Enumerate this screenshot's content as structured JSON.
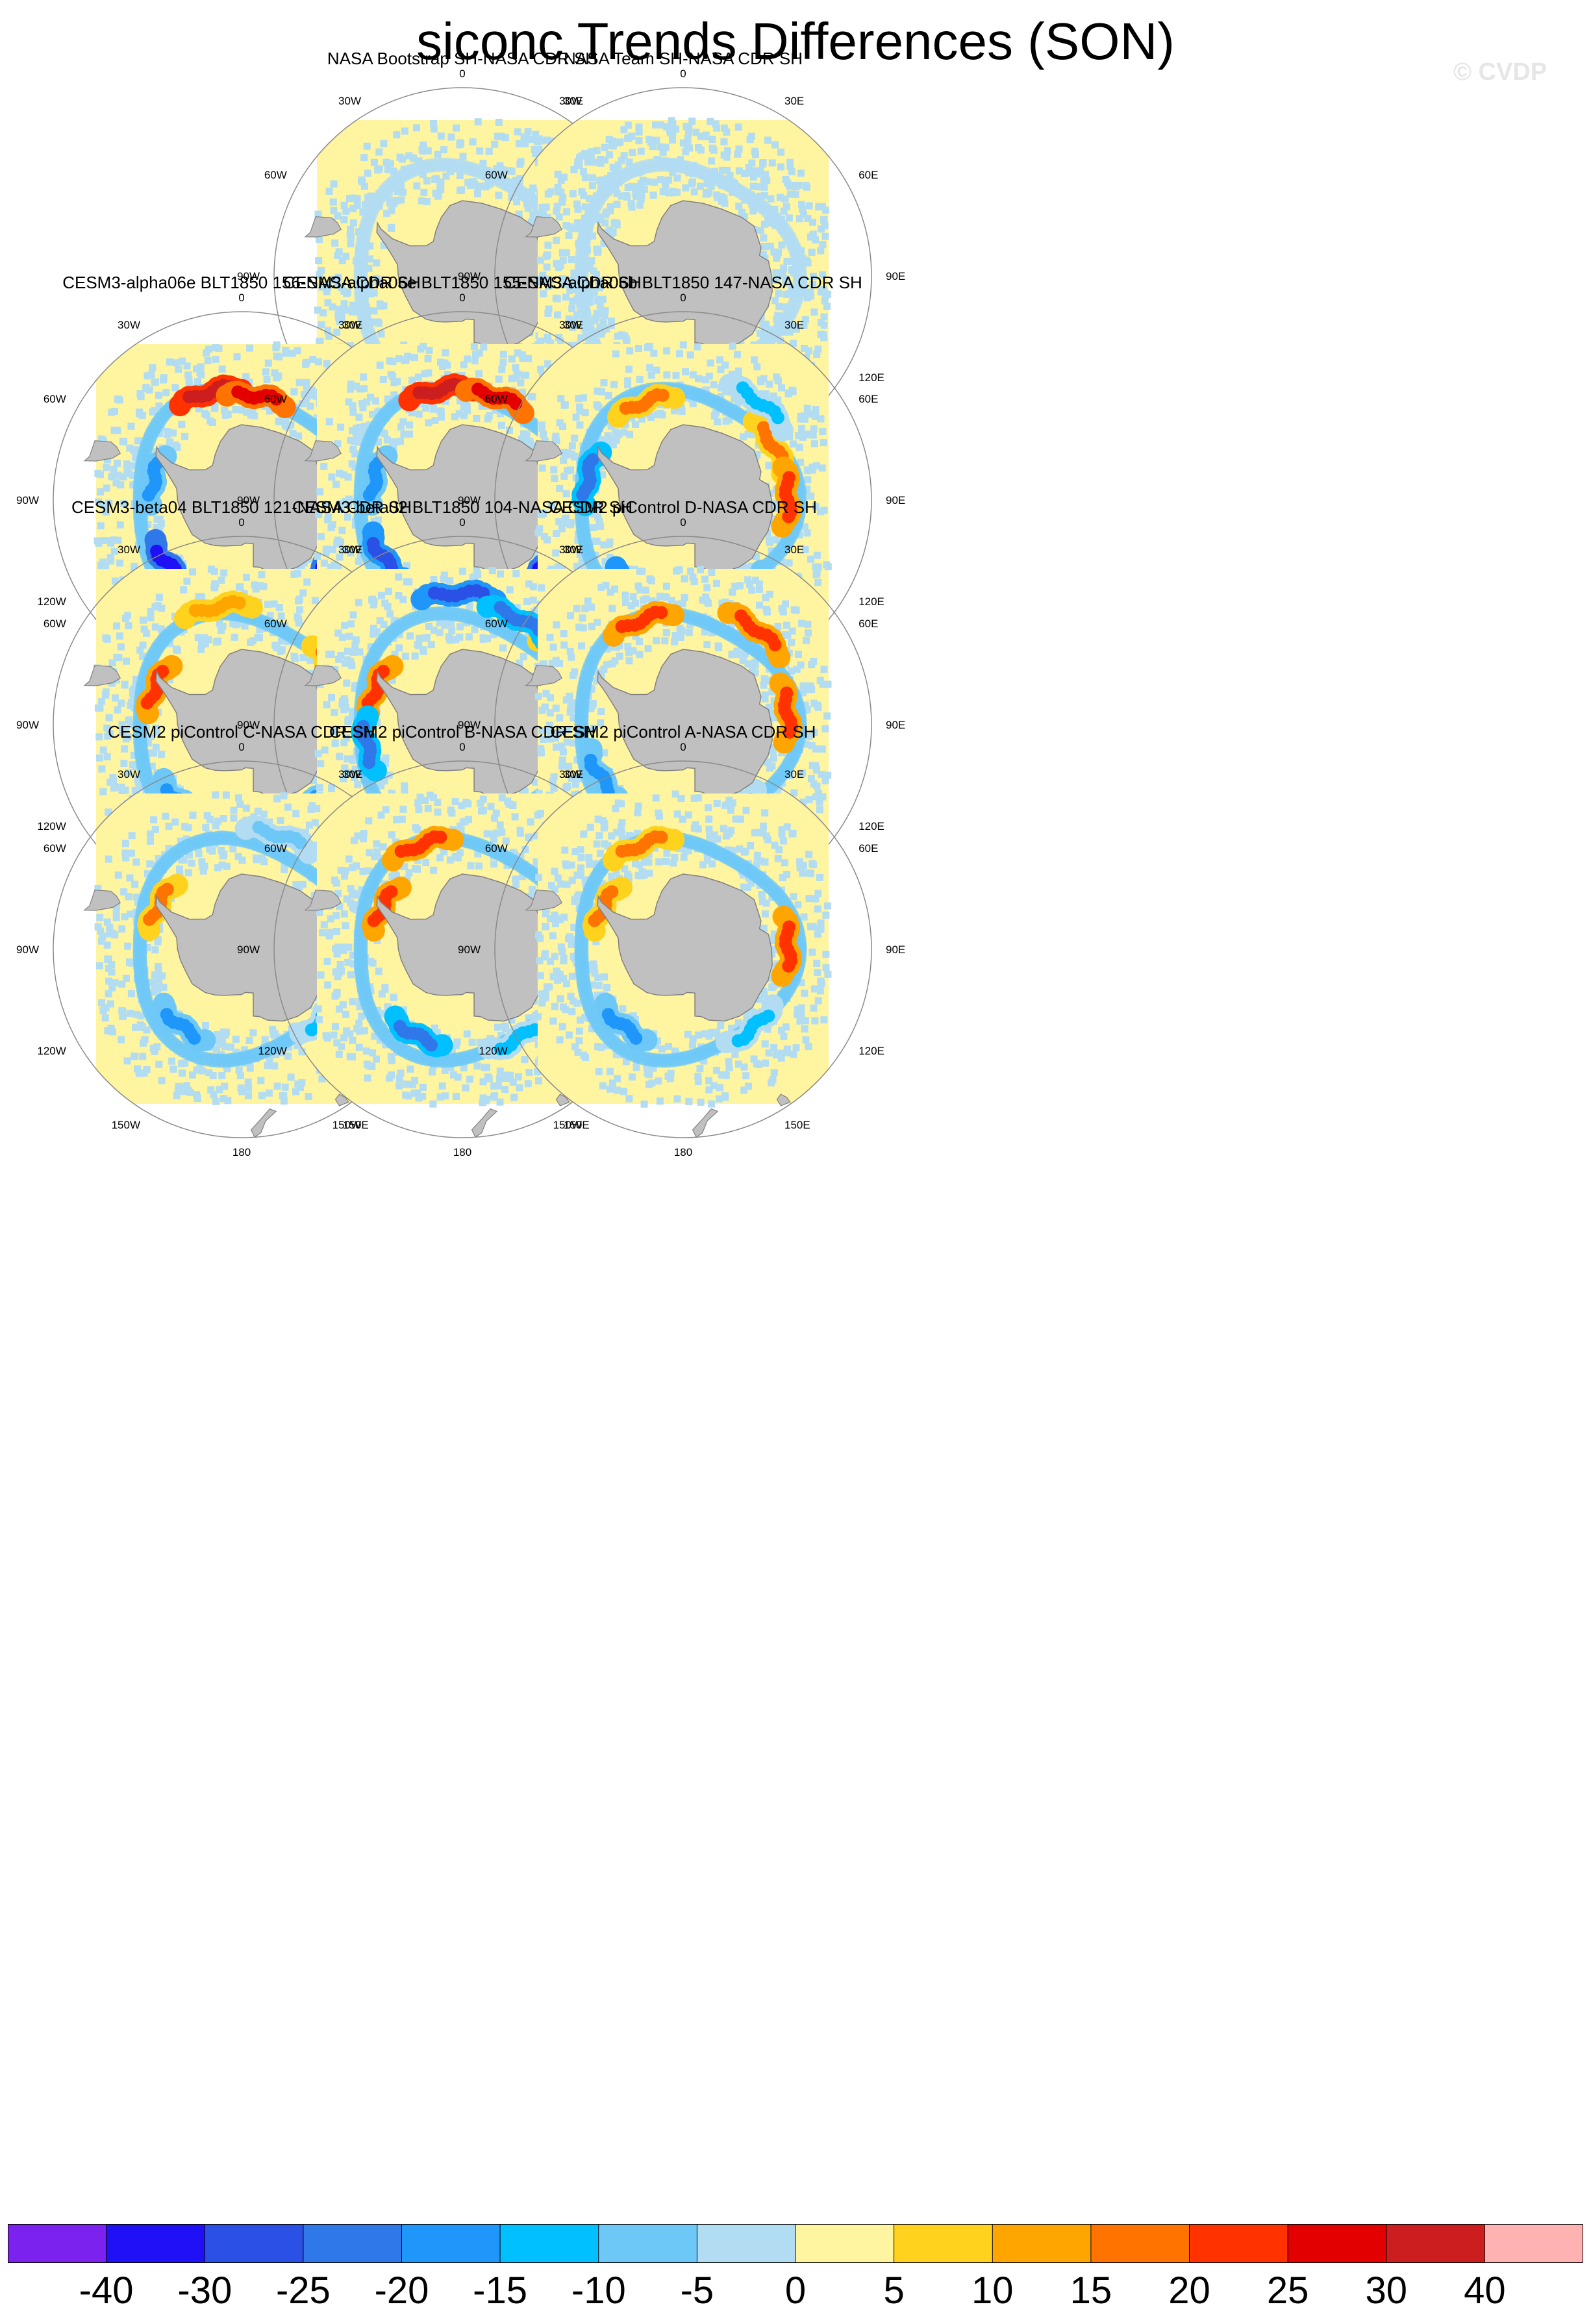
{
  "title": "siconc Trends Differences (SON)",
  "watermark": "© CVDP",
  "colors": {
    "land": "#c0c0c0",
    "coast": "#808080",
    "circle": "#8a8a8a"
  },
  "lon_labels": [
    "0",
    "30E",
    "60E",
    "90E",
    "120E",
    "150E",
    "180",
    "150W",
    "120W",
    "90W",
    "60W",
    "30W"
  ],
  "chart_data": {
    "type": "heatmap",
    "title": "siconc Trends Differences (SON)",
    "projection": "south polar stereographic",
    "panel_layout": "4 rows x 3 columns, first row starts at column 2",
    "panels": [
      {
        "title": "NASA Bootstrap SH-NASA CDR SH",
        "pattern": "weak",
        "blobs": []
      },
      {
        "title": "NASA Team SH-NASA CDR SH",
        "pattern": "weak-negative",
        "blobs": []
      },
      {
        "title": "CESM3-alpha06e BLT1850 156-NASA CDR SH",
        "pattern": "strong",
        "blobs": [
          {
            "lon": -15,
            "lat": -60,
            "value": 30
          },
          {
            "lon": 10,
            "lat": -62,
            "value": 25
          },
          {
            "lon": 80,
            "lat": -62,
            "value": 25
          },
          {
            "lon": 130,
            "lat": -62,
            "value": -35
          },
          {
            "lon": -130,
            "lat": -64,
            "value": -35
          },
          {
            "lon": -75,
            "lat": -66,
            "value": -20
          },
          {
            "lon": 178,
            "lat": -63,
            "value": 15
          }
        ]
      },
      {
        "title": "CESM3-alpha06e BLT1850 155-NASA CDR SH",
        "pattern": "strong",
        "blobs": [
          {
            "lon": -10,
            "lat": -60,
            "value": 30
          },
          {
            "lon": 20,
            "lat": -61,
            "value": 25
          },
          {
            "lon": 85,
            "lat": -62,
            "value": 20
          },
          {
            "lon": 135,
            "lat": -62,
            "value": -35
          },
          {
            "lon": -125,
            "lat": -64,
            "value": -30
          },
          {
            "lon": -75,
            "lat": -66,
            "value": -20
          },
          {
            "lon": 180,
            "lat": -60,
            "value": 25
          }
        ]
      },
      {
        "title": "CESM3-alpha06b BLT1850 147-NASA CDR SH",
        "pattern": "strong",
        "blobs": [
          {
            "lon": -20,
            "lat": -62,
            "value": 15
          },
          {
            "lon": 60,
            "lat": -62,
            "value": 15
          },
          {
            "lon": 90,
            "lat": -62,
            "value": 20
          },
          {
            "lon": -150,
            "lat": -64,
            "value": -30
          },
          {
            "lon": -75,
            "lat": -64,
            "value": -25
          },
          {
            "lon": 40,
            "lat": -57,
            "value": -15
          },
          {
            "lon": 150,
            "lat": -62,
            "value": -20
          }
        ]
      },
      {
        "title": "CESM3-beta04 BLT1850 121-NASA CDR SH",
        "pattern": "moderate",
        "blobs": [
          {
            "lon": 85,
            "lat": -62,
            "value": 25
          },
          {
            "lon": 60,
            "lat": -62,
            "value": 15
          },
          {
            "lon": -65,
            "lat": -65,
            "value": 20
          },
          {
            "lon": 140,
            "lat": -62,
            "value": -20
          },
          {
            "lon": -140,
            "lat": -64,
            "value": -20
          },
          {
            "lon": -10,
            "lat": -58,
            "value": 10
          }
        ]
      },
      {
        "title": "CESM3-beta02 BLT1850 104-NASA CDR SH",
        "pattern": "moderate",
        "blobs": [
          {
            "lon": 90,
            "lat": -62,
            "value": 25
          },
          {
            "lon": 60,
            "lat": -60,
            "value": 15
          },
          {
            "lon": -65,
            "lat": -65,
            "value": 20
          },
          {
            "lon": 0,
            "lat": -55,
            "value": -30
          },
          {
            "lon": 30,
            "lat": -58,
            "value": -25
          },
          {
            "lon": -160,
            "lat": -62,
            "value": -35
          },
          {
            "lon": -100,
            "lat": -64,
            "value": -25
          }
        ]
      },
      {
        "title": "CESM2 piControl D-NASA CDR SH",
        "pattern": "moderate",
        "blobs": [
          {
            "lon": -20,
            "lat": -60,
            "value": 20
          },
          {
            "lon": 40,
            "lat": -58,
            "value": 20
          },
          {
            "lon": 85,
            "lat": -62,
            "value": 20
          },
          {
            "lon": -120,
            "lat": -64,
            "value": -20
          },
          {
            "lon": 150,
            "lat": -64,
            "value": -15
          }
        ]
      },
      {
        "title": "CESM2 piControl C-NASA CDR SH",
        "pattern": "moderate",
        "blobs": [
          {
            "lon": 90,
            "lat": -62,
            "value": 20
          },
          {
            "lon": -60,
            "lat": -65,
            "value": 15
          },
          {
            "lon": -140,
            "lat": -64,
            "value": -20
          },
          {
            "lon": 130,
            "lat": -62,
            "value": -15
          },
          {
            "lon": 20,
            "lat": -58,
            "value": -10
          }
        ]
      },
      {
        "title": "CESM2 piControl B-NASA CDR SH",
        "pattern": "moderate",
        "blobs": [
          {
            "lon": -20,
            "lat": -60,
            "value": 20
          },
          {
            "lon": 80,
            "lat": -62,
            "value": 20
          },
          {
            "lon": -60,
            "lat": -66,
            "value": 20
          },
          {
            "lon": -150,
            "lat": -64,
            "value": -25
          },
          {
            "lon": 150,
            "lat": -62,
            "value": -15
          }
        ]
      },
      {
        "title": "CESM2 piControl A-NASA CDR SH",
        "pattern": "moderate",
        "blobs": [
          {
            "lon": -20,
            "lat": -60,
            "value": 15
          },
          {
            "lon": 90,
            "lat": -62,
            "value": 20
          },
          {
            "lon": -60,
            "lat": -66,
            "value": 15
          },
          {
            "lon": -140,
            "lat": -64,
            "value": -20
          },
          {
            "lon": 140,
            "lat": -62,
            "value": -15
          }
        ]
      }
    ],
    "colorbar": {
      "labels": [
        "-40",
        "-30",
        "-25",
        "-20",
        "-15",
        "-10",
        "-5",
        "0",
        "5",
        "10",
        "15",
        "20",
        "25",
        "30",
        "40"
      ],
      "levels": [
        -40,
        -30,
        -25,
        -20,
        -15,
        -10,
        -5,
        0,
        5,
        10,
        15,
        20,
        25,
        30,
        40
      ],
      "colors": [
        "#7c22ee",
        "#1f10f5",
        "#2a50e6",
        "#2f78ea",
        "#1e96fa",
        "#00c0ff",
        "#6ec8f7",
        "#b2dcf2",
        "#fff4a0",
        "#ffd21e",
        "#ffa500",
        "#ff7300",
        "#ff3200",
        "#e20000",
        "#cc1e1e",
        "#ffb2b2"
      ]
    }
  }
}
